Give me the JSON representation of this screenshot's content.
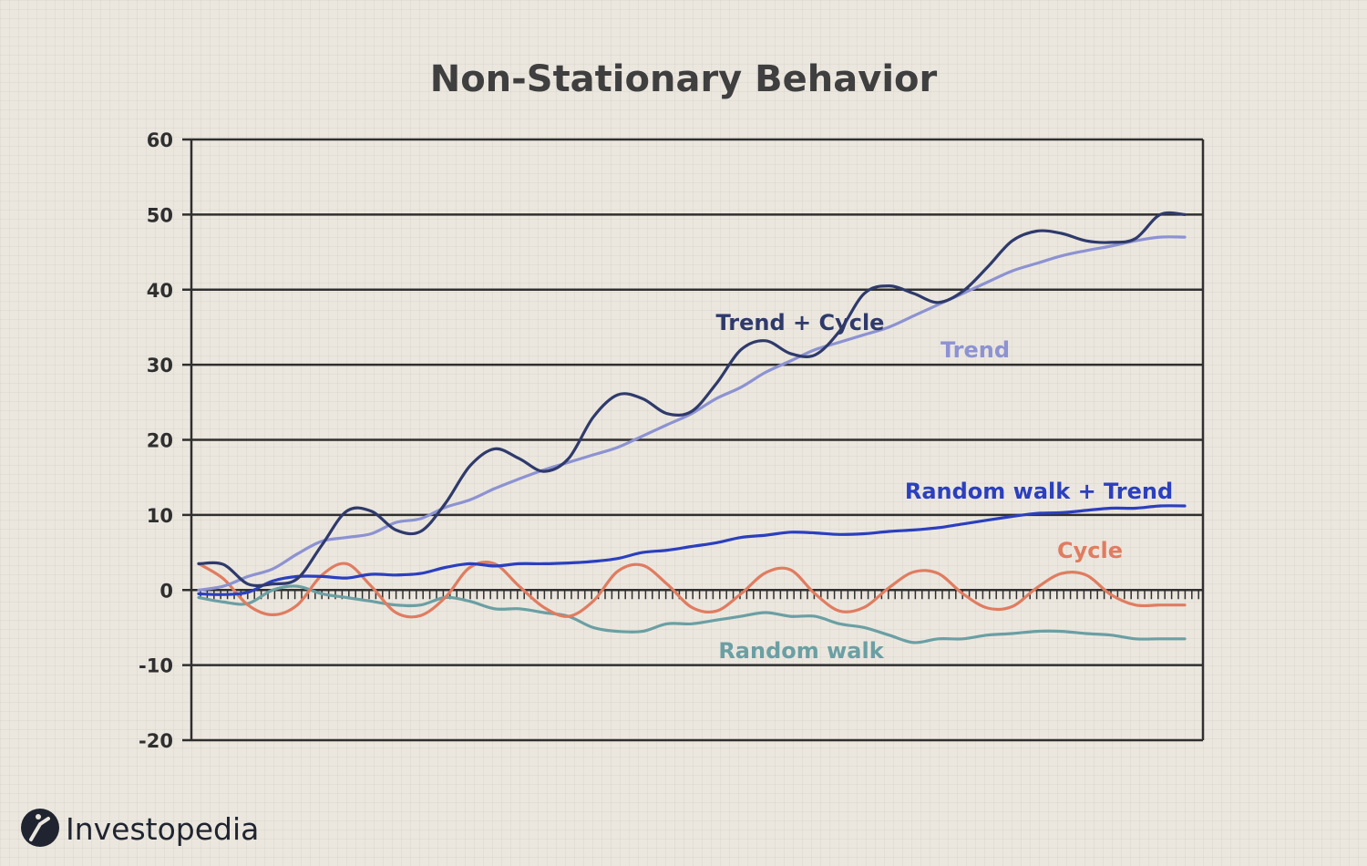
{
  "chart_data": {
    "type": "line",
    "title": "Non-Stationary Behavior",
    "xlabel": "",
    "ylabel": "",
    "ylim": [
      -20,
      60
    ],
    "yticks": [
      -20,
      -10,
      0,
      10,
      20,
      30,
      40,
      50,
      60
    ],
    "x": [
      0,
      5,
      10,
      15,
      20,
      25,
      30,
      35,
      40,
      45,
      50,
      55,
      60,
      65,
      70,
      75,
      80,
      85,
      90,
      95,
      100,
      105,
      110,
      115,
      120,
      125,
      130,
      135,
      140,
      145,
      150,
      155,
      160,
      165,
      170,
      175,
      180,
      185,
      190,
      195,
      200
    ],
    "grid": "horizontal",
    "legend": "inline labels",
    "series": [
      {
        "name": "Trend + Cycle",
        "color": "#2f3a6b",
        "values": [
          3.5,
          3.4,
          0.8,
          0.8,
          1.5,
          6,
          10.5,
          10.5,
          8,
          7.8,
          11.5,
          16.5,
          18.8,
          17.5,
          15.8,
          17.5,
          23,
          26,
          25.5,
          23.5,
          23.8,
          27.5,
          32,
          33.2,
          31.5,
          31.3,
          34.5,
          39.5,
          40.5,
          39.5,
          38.3,
          39.8,
          43,
          46.5,
          47.8,
          47.5,
          46.5,
          46.3,
          46.8,
          50,
          50
        ]
      },
      {
        "name": "Trend",
        "color": "#8c92d2",
        "values": [
          0,
          0.5,
          1.8,
          2.8,
          4.8,
          6.5,
          7,
          7.5,
          9,
          9.5,
          11,
          12,
          13.5,
          14.8,
          16,
          17,
          18,
          19,
          20.5,
          22,
          23.5,
          25.5,
          27,
          29,
          30.5,
          32,
          33,
          34,
          35,
          36.5,
          38,
          39.5,
          41,
          42.5,
          43.5,
          44.5,
          45.2,
          45.8,
          46.5,
          47,
          47
        ]
      },
      {
        "name": "Random walk + Trend",
        "color": "#2b3fbf",
        "values": [
          -0.5,
          -0.6,
          -0.3,
          1.2,
          1.8,
          1.8,
          1.6,
          2.1,
          2,
          2.2,
          3,
          3.5,
          3.2,
          3.5,
          3.5,
          3.6,
          3.8,
          4.2,
          5,
          5.3,
          5.8,
          6.3,
          7,
          7.3,
          7.7,
          7.6,
          7.4,
          7.5,
          7.8,
          8,
          8.3,
          8.8,
          9.3,
          9.8,
          10.2,
          10.3,
          10.6,
          10.9,
          10.9,
          11.2,
          11.2
        ]
      },
      {
        "name": "Cycle",
        "color": "#e07c60",
        "values": [
          3.5,
          1.5,
          -2,
          -3.3,
          -2,
          2,
          3.5,
          0.5,
          -3,
          -3.4,
          -1,
          3,
          3.5,
          0.5,
          -2.3,
          -3.5,
          -1.5,
          2.5,
          3.3,
          0.8,
          -2.3,
          -2.8,
          -0.5,
          2.3,
          2.7,
          -0.5,
          -2.8,
          -2.3,
          0.3,
          2.4,
          2.2,
          -0.5,
          -2.4,
          -2.2,
          0.3,
          2.2,
          2,
          -0.6,
          -2,
          -2,
          -2
        ]
      },
      {
        "name": "Random walk",
        "color": "#6b9fa3",
        "values": [
          -1,
          -1.6,
          -1.8,
          0,
          0.5,
          -0.5,
          -1,
          -1.5,
          -2,
          -2,
          -1,
          -1.5,
          -2.5,
          -2.5,
          -3,
          -3.5,
          -5,
          -5.5,
          -5.5,
          -4.5,
          -4.5,
          -4,
          -3.5,
          -3,
          -3.5,
          -3.5,
          -4.5,
          -5,
          -6,
          -7,
          -6.5,
          -6.5,
          -6,
          -5.8,
          -5.5,
          -5.5,
          -5.8,
          -6,
          -6.5,
          -6.5,
          -6.5
        ]
      }
    ],
    "labels": [
      {
        "text": "Trend + Cycle",
        "color": "#2f3a6b"
      },
      {
        "text": "Trend",
        "color": "#8c92d2"
      },
      {
        "text": "Random walk + Trend",
        "color": "#2b3fbf"
      },
      {
        "text": "Cycle",
        "color": "#e07c60"
      },
      {
        "text": "Random walk",
        "color": "#6b9fa3"
      }
    ]
  },
  "brand": {
    "name": "Investopedia",
    "logo_icon": "investopedia-logo-icon",
    "logo_color": "#1f2430"
  },
  "colors": {
    "background": "#ebe7df",
    "axis": "#2f2f2f"
  }
}
